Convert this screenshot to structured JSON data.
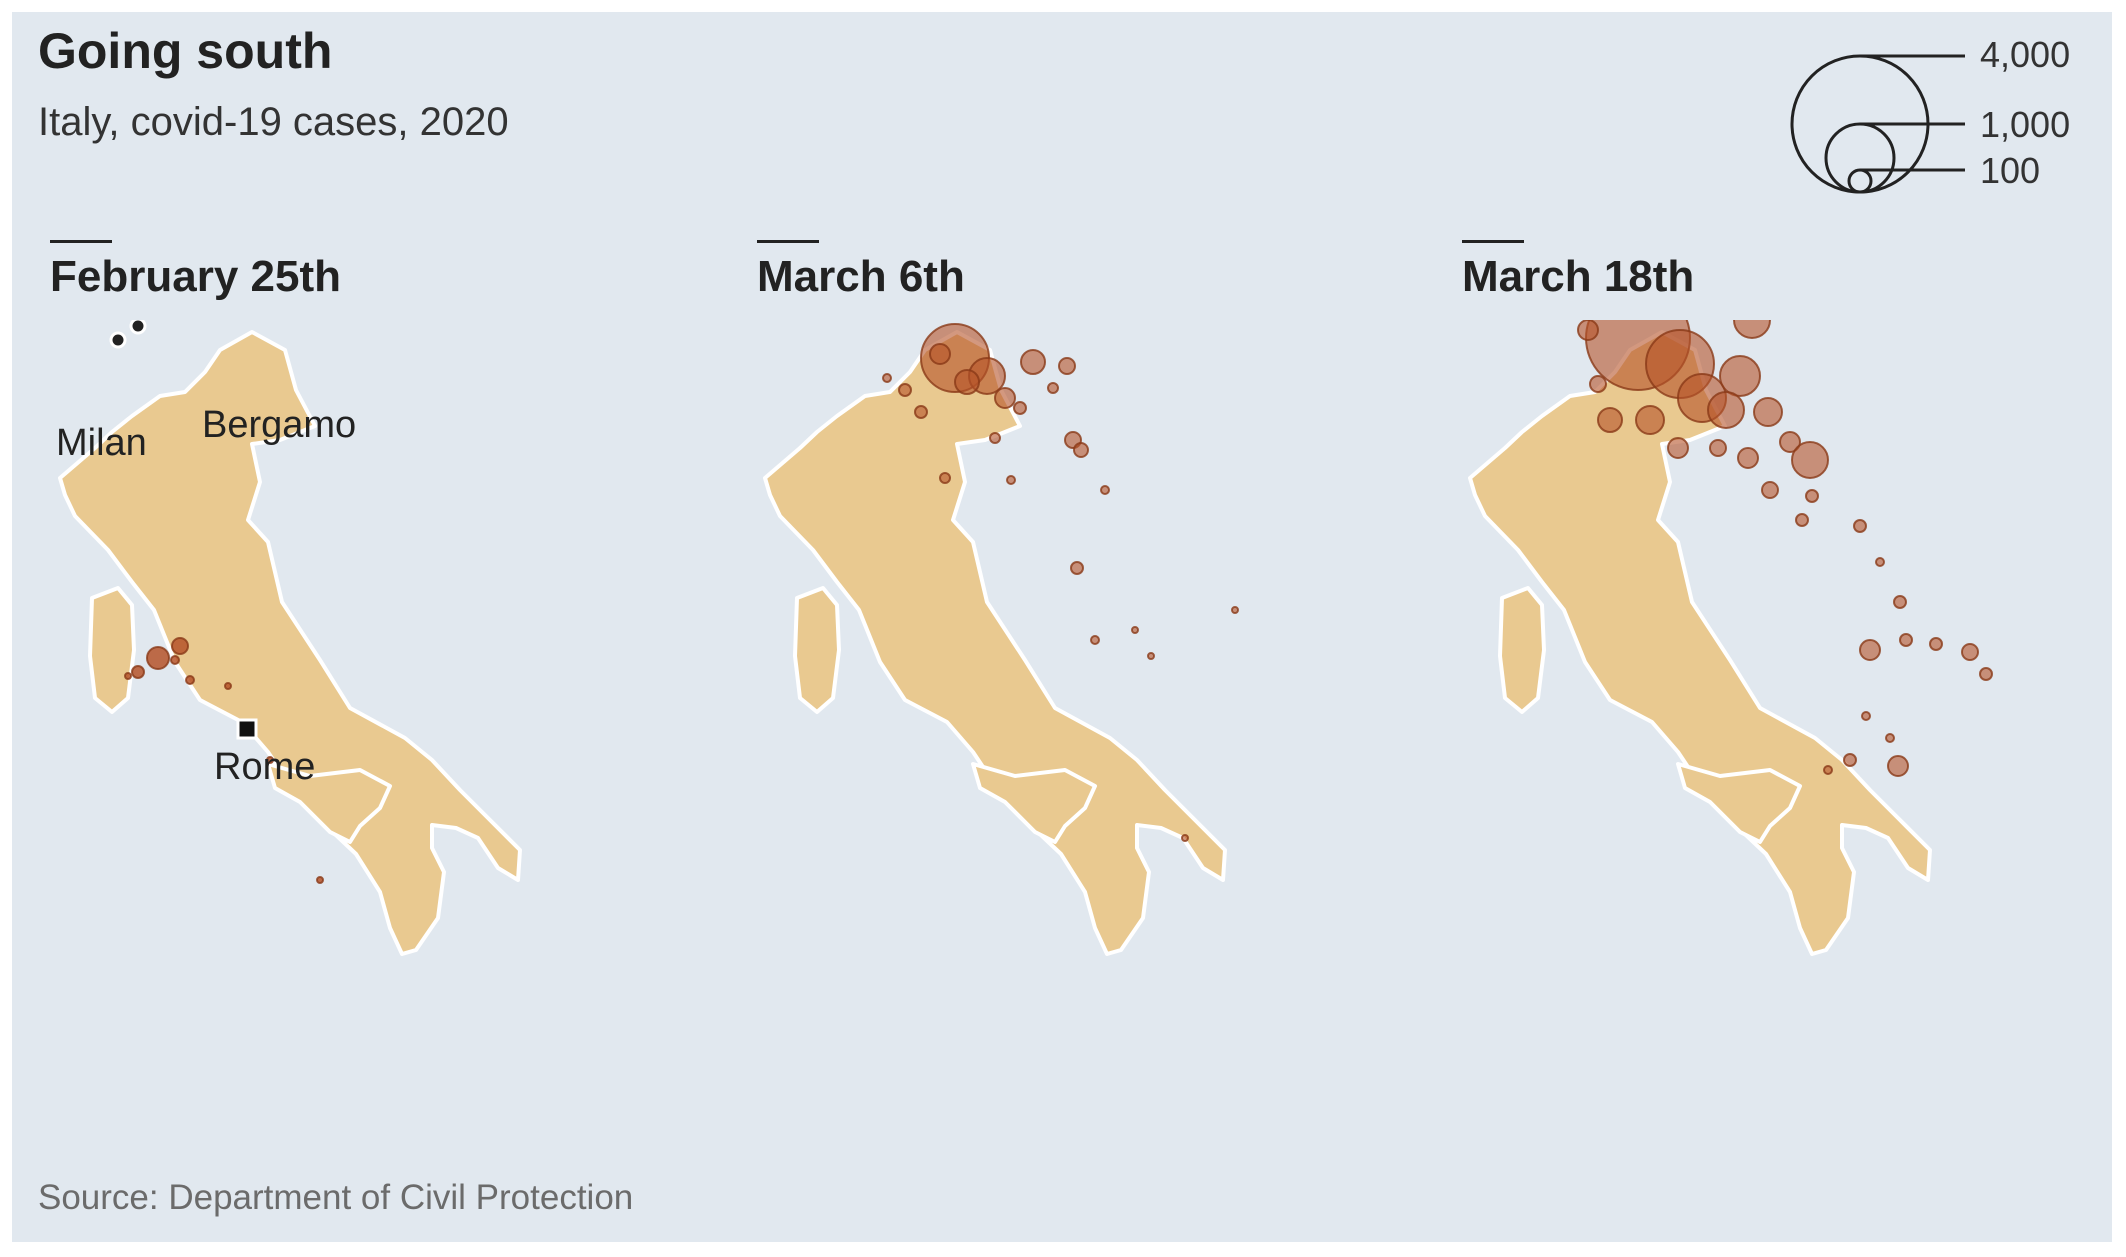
{
  "title": "Going south",
  "subtitle": "Italy, covid-19 cases, 2020",
  "source": "Source: Department of Civil Protection",
  "colors": {
    "background": "#e1e8ef",
    "land": "#e9c990",
    "coast": "#ffffff",
    "bubble": "#b5532a",
    "text": "#222222"
  },
  "legend": {
    "labels": [
      "4,000",
      "1,000",
      "100"
    ],
    "values": [
      4000,
      1000,
      100
    ]
  },
  "panels": [
    {
      "label": "February 25th",
      "cities": [
        {
          "name": "Milan"
        },
        {
          "name": "Bergamo"
        },
        {
          "name": "Rome"
        }
      ]
    },
    {
      "label": "March 6th"
    },
    {
      "label": "March 18th"
    }
  ]
}
